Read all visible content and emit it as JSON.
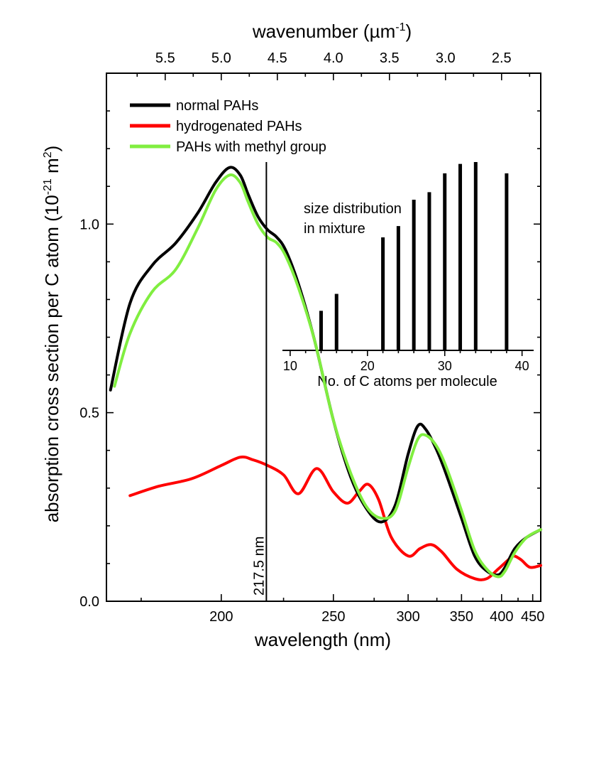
{
  "chart_data": {
    "type": "line",
    "title": "",
    "xlabel": "wavelength (nm)",
    "ylabel": "absorption cross section per C atom",
    "ylabel_unit_base": "(10",
    "ylabel_unit_exp": "-21",
    "ylabel_unit_rest": " m",
    "ylabel_unit_exp2": "2",
    "ylabel_unit_close": ")",
    "x_scale": "reciprocal",
    "xlim": [
      166,
      465
    ],
    "ylim": [
      0.0,
      1.4
    ],
    "x_ticks": [
      200,
      250,
      300,
      350,
      400,
      450
    ],
    "y_ticks": [
      0.0,
      0.5,
      1.0
    ],
    "y_tick_labels": [
      "0.0",
      "0.5",
      "1.0"
    ],
    "top_axis": {
      "label": "wavenumber (µm",
      "label_exp": "-1",
      "label_close": ")",
      "ticks": [
        5.5,
        5.0,
        4.5,
        4.0,
        3.5,
        3.0,
        2.5
      ],
      "tick_labels": [
        "5.5",
        "5.0",
        "4.5",
        "4.0",
        "3.5",
        "3.0",
        "2.5"
      ]
    },
    "legend_position": "top-left",
    "series": [
      {
        "name": "normal PAHs",
        "color": "#000000",
        "x": [
          167,
          172,
          178,
          185,
          192,
          198,
          203,
          207,
          210,
          214,
          218,
          222,
          226,
          232,
          240,
          250,
          260,
          270,
          280,
          290,
          300,
          308,
          315,
          325,
          335,
          350,
          365,
          380,
          395,
          405,
          420,
          440,
          465
        ],
        "y": [
          0.56,
          0.79,
          0.89,
          0.95,
          1.03,
          1.11,
          1.15,
          1.13,
          1.08,
          1.02,
          0.985,
          0.965,
          0.93,
          0.84,
          0.69,
          0.48,
          0.33,
          0.245,
          0.21,
          0.255,
          0.39,
          0.465,
          0.455,
          0.4,
          0.33,
          0.22,
          0.12,
          0.08,
          0.07,
          0.09,
          0.14,
          0.17,
          0.19
        ]
      },
      {
        "name": "hydrogenated PAHs",
        "color": "#ff0000",
        "x": [
          172,
          180,
          190,
          200,
          207,
          212,
          218,
          225,
          232,
          241,
          250,
          258,
          265,
          271,
          278,
          287,
          300,
          310,
          320,
          330,
          345,
          365,
          380,
          395,
          410,
          418,
          430,
          445,
          465
        ],
        "y": [
          0.28,
          0.305,
          0.325,
          0.36,
          0.382,
          0.375,
          0.36,
          0.335,
          0.285,
          0.352,
          0.29,
          0.26,
          0.29,
          0.31,
          0.27,
          0.17,
          0.12,
          0.14,
          0.15,
          0.13,
          0.085,
          0.06,
          0.06,
          0.085,
          0.11,
          0.12,
          0.11,
          0.09,
          0.095
        ]
      },
      {
        "name": "PAHs with methyl group",
        "color": "#80ee40",
        "x": [
          168,
          172,
          178,
          185,
          192,
          198,
          203,
          207,
          210,
          214,
          218,
          222,
          226,
          232,
          240,
          250,
          260,
          270,
          280,
          290,
          300,
          308,
          315,
          325,
          335,
          350,
          365,
          380,
          395,
          405,
          420,
          440,
          465
        ],
        "y": [
          0.57,
          0.71,
          0.82,
          0.88,
          0.99,
          1.09,
          1.13,
          1.11,
          1.06,
          1.0,
          0.965,
          0.95,
          0.915,
          0.83,
          0.69,
          0.48,
          0.34,
          0.25,
          0.22,
          0.24,
          0.355,
          0.43,
          0.44,
          0.41,
          0.35,
          0.24,
          0.135,
          0.085,
          0.065,
          0.08,
          0.13,
          0.17,
          0.19
        ]
      }
    ],
    "annotations": [
      {
        "type": "vline",
        "x": 217.5,
        "label": "217.5 nm"
      }
    ],
    "inset": {
      "type": "bar",
      "title": "size distribution\nin mixture",
      "title_line1": "size distribution",
      "title_line2": "in mixture",
      "xlabel": "No. of C atoms per molecule",
      "xlim": [
        9,
        41.5
      ],
      "ylim": [
        0,
        1
      ],
      "x_ticks": [
        10,
        20,
        30,
        40
      ],
      "x_tick_labels": [
        "10",
        "20",
        "30",
        "40"
      ],
      "x": [
        14,
        16,
        22,
        24,
        26,
        28,
        30,
        32,
        34,
        38
      ],
      "values": [
        0.21,
        0.3,
        0.6,
        0.66,
        0.8,
        0.84,
        0.94,
        0.99,
        1.0,
        0.94
      ]
    }
  }
}
